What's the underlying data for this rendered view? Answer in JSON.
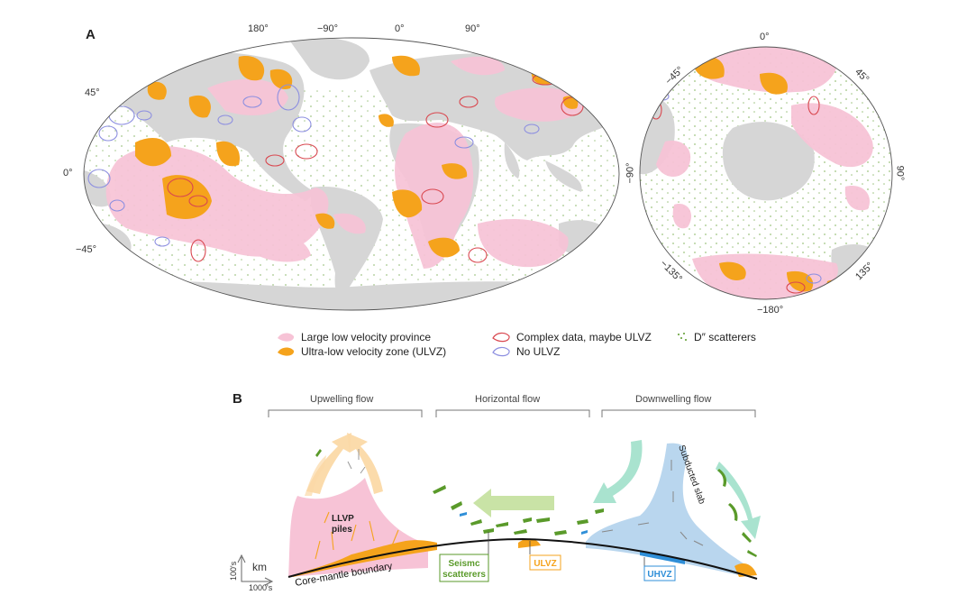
{
  "panel_a": {
    "letter": "A",
    "top_lon_labels": [
      "180°",
      "−90°",
      "0°",
      "90°"
    ],
    "left_lat_labels": [
      "45°",
      "0°",
      "−45°"
    ],
    "polar_labels": {
      "top": "0°",
      "upper_left": "−45°",
      "upper_right": "45°",
      "left": "−90°",
      "right": "90°",
      "lower_left": "−135°",
      "lower_right": "135°",
      "bottom": "−180°"
    }
  },
  "legend": {
    "llvp": "Large low velocity province",
    "ulvz": "Ultra-low velocity zone (ULVZ)",
    "complex": "Complex data, maybe ULVZ",
    "no_ulvz": "No ULVZ",
    "scatterers": "D″ scatterers"
  },
  "panel_b": {
    "letter": "B",
    "upwelling": "Upwelling flow",
    "horizontal": "Horizontal flow",
    "downwelling": "Downwelling flow",
    "llvp_piles_1": "LLVP",
    "llvp_piles_2": "piles",
    "subducted_slab": "Subducted slab",
    "cmb": "Core-mantle boundary",
    "seismic_1": "Seismc",
    "seismic_2": "scatterers",
    "ulvz": "ULVZ",
    "uhvz": "UHVZ",
    "axis_km": "km",
    "axis_100s": "100's",
    "axis_1000s": "1000's"
  },
  "colors": {
    "llvp": "#f7c3d6",
    "ulvz": "#f5a31c",
    "land": "#d6d6d6",
    "complex_outline": "#d9474f",
    "no_ulvz_outline": "#8d8fe0",
    "scatterer": "#5a9a2a",
    "slab": "#b9d6ee",
    "uhvz": "#2f8fd8",
    "arrow_up": "#fbd9a6",
    "arrow_horizontal": "#c9e3a6",
    "arrow_down": "#a9e3cf"
  }
}
